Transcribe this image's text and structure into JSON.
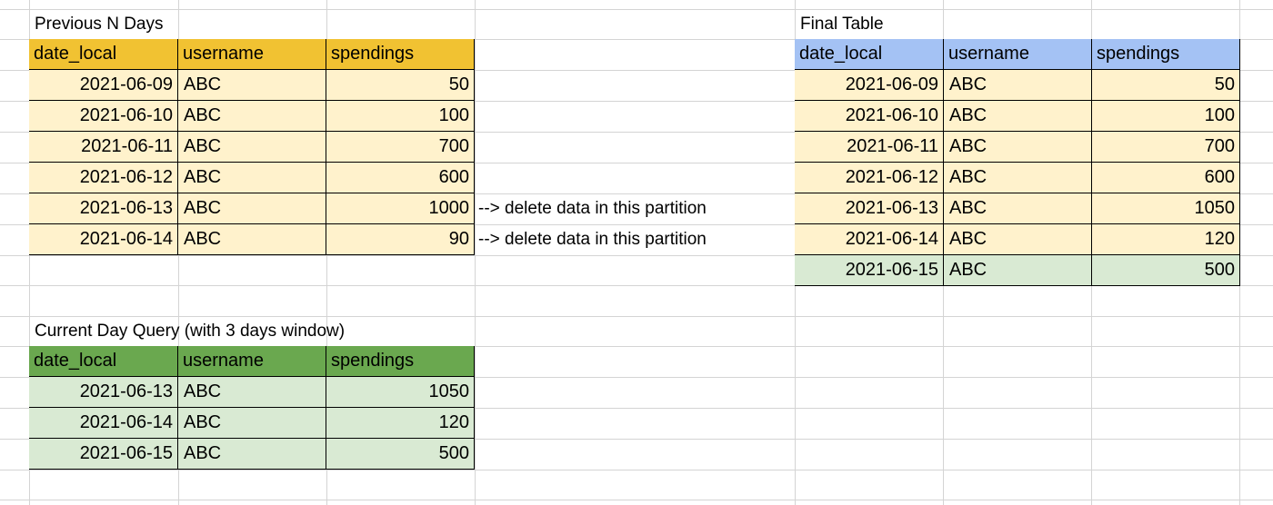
{
  "colors": {
    "previous_header": "#f1c232",
    "final_header": "#a4c2f4",
    "current_header": "#6aa84f",
    "row_yellow": "#fff2cc",
    "row_green": "#d9ead3"
  },
  "previous": {
    "title": "Previous N Days",
    "headers": [
      "date_local",
      "username",
      "spendings"
    ],
    "rows": [
      [
        "2021-06-09",
        "ABC",
        "50"
      ],
      [
        "2021-06-10",
        "ABC",
        "100"
      ],
      [
        "2021-06-11",
        "ABC",
        "700"
      ],
      [
        "2021-06-12",
        "ABC",
        "600"
      ],
      [
        "2021-06-13",
        "ABC",
        "1000"
      ],
      [
        "2021-06-14",
        "ABC",
        "90"
      ]
    ],
    "notes": [
      "--> delete data in this partition",
      "--> delete data in this partition"
    ]
  },
  "current": {
    "title": "Current Day Query (with 3 days window)",
    "headers": [
      "date_local",
      "username",
      "spendings"
    ],
    "rows": [
      [
        "2021-06-13",
        "ABC",
        "1050"
      ],
      [
        "2021-06-14",
        "ABC",
        "120"
      ],
      [
        "2021-06-15",
        "ABC",
        "500"
      ]
    ]
  },
  "final": {
    "title": "Final Table",
    "headers": [
      "date_local",
      "username",
      "spendings"
    ],
    "rows": [
      [
        "2021-06-09",
        "ABC",
        "50"
      ],
      [
        "2021-06-10",
        "ABC",
        "100"
      ],
      [
        "2021-06-11",
        "ABC",
        "700"
      ],
      [
        "2021-06-12",
        "ABC",
        "600"
      ],
      [
        "2021-06-13",
        "ABC",
        "1050"
      ],
      [
        "2021-06-14",
        "ABC",
        "120"
      ],
      [
        "2021-06-15",
        "ABC",
        "500"
      ]
    ]
  }
}
